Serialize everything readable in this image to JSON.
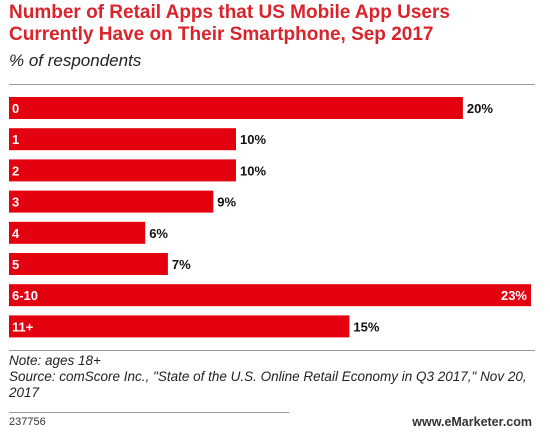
{
  "header": {
    "title": "Number of Retail Apps that US Mobile App Users Currently Have on Their Smartphone, Sep 2017",
    "subtitle": "% of respondents"
  },
  "footer": {
    "note": "Note: ages 18+",
    "source": "Source: comScore Inc., \"State of the U.S. Online Retail Economy in Q3 2017,\" Nov 20, 2017",
    "chart_id": "237756",
    "brand_prefix": "www.",
    "brand_name": "eMarketer",
    "brand_suffix": ".com"
  },
  "colors": {
    "bar": "#e3000f",
    "title": "#d9242b",
    "category_text": "#ffffff",
    "value_text": "#111111",
    "value_text_inside": "#ffffff"
  },
  "chart_data": {
    "type": "bar",
    "orientation": "horizontal",
    "categories": [
      "0",
      "1",
      "2",
      "3",
      "4",
      "5",
      "6-10",
      "11+"
    ],
    "values": [
      20,
      10,
      10,
      9,
      6,
      7,
      23,
      15
    ],
    "value_labels": [
      "20%",
      "10%",
      "10%",
      "9%",
      "6%",
      "7%",
      "23%",
      "15%"
    ],
    "title": "Number of Retail Apps that US Mobile App Users Currently Have on Their Smartphone, Sep 2017",
    "subtitle": "% of respondents",
    "xlabel": "",
    "ylabel": "",
    "xlim": [
      0,
      23
    ],
    "grid": false,
    "legend": "none",
    "label_inside_for_max": true
  }
}
